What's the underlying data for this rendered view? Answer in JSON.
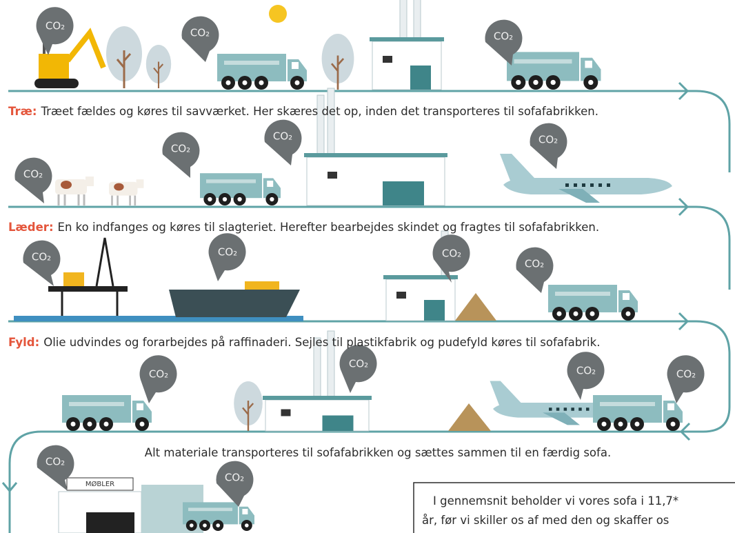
{
  "bubble_label": "CO₂",
  "rows": [
    {
      "label": "Træ:",
      "text": "Træet fældes og køres til savværket. Her skæres det op, inden det transporteres til sofafabrikken."
    },
    {
      "label": "Læder:",
      "text": "En ko indfanges og køres til slagteriet. Herefter bearbejdes skindet og fragtes til sofafabrikken."
    },
    {
      "label": "Fyld:",
      "text": "Olie udvindes og forarbejdes på raffinaderi. Sejles til plastikfabrik og pudefyld køres til sofafabrik."
    }
  ],
  "assembly_text": "Alt materiale transporteres til sofafabrikken og sættes sammen til en færdig sofa.",
  "shop_sign": "MØBLER",
  "info_box": {
    "lines": [
      "I gennemsnit beholder vi vores sofa i 11,7*",
      "år, før vi skiller os af med den og skaffer os"
    ]
  }
}
